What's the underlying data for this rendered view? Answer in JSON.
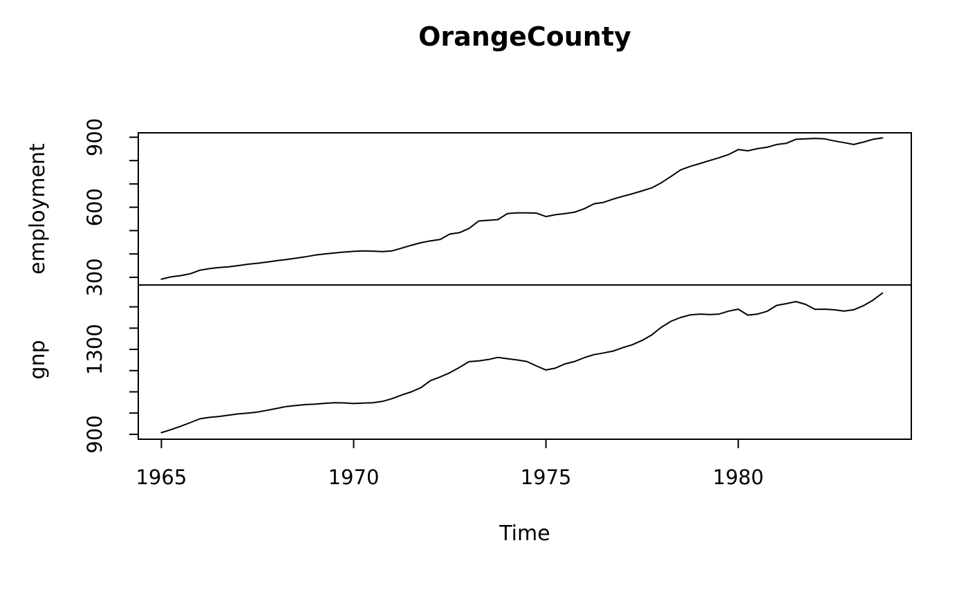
{
  "title": "OrangeCounty",
  "colors": {
    "background": "#ffffff",
    "line": "#000000",
    "text": "#000000",
    "axis": "#000000"
  },
  "chart_data": {
    "type": "line",
    "title": "OrangeCounty",
    "xlabel": "Time",
    "x_start": 1965.0,
    "x_step": 0.25,
    "x_end": 1983.75,
    "xlim": [
      1964.4,
      1984.5
    ],
    "xticks": [
      1965,
      1970,
      1975,
      1980
    ],
    "grid": false,
    "legend": "none",
    "layout": "two stacked panels sharing the x axis",
    "panels": [
      {
        "ylabel": "employment",
        "ylim": [
          267,
          919
        ],
        "yticks": [
          300,
          400,
          500,
          600,
          700,
          800,
          900
        ],
        "ytick_labels": [
          300,
          600,
          900
        ],
        "values": [
          292,
          302,
          307,
          315,
          330,
          337,
          342,
          345,
          350,
          356,
          360,
          365,
          371,
          376,
          382,
          388,
          395,
          400,
          404,
          408,
          411,
          413,
          412,
          410,
          413,
          425,
          437,
          448,
          456,
          462,
          485,
          491,
          509,
          541,
          544,
          547,
          573,
          576,
          576,
          575,
          560,
          568,
          573,
          579,
          594,
          615,
          621,
          635,
          647,
          658,
          670,
          683,
          705,
          732,
          760,
          775,
          787,
          800,
          812,
          826,
          847,
          842,
          851,
          857,
          869,
          874,
          891,
          893,
          895,
          893,
          884,
          877,
          869,
          879,
          891,
          897
        ]
      },
      {
        "ylabel": "gnp",
        "ylim": [
          877,
          1603
        ],
        "yticks": [
          900,
          1000,
          1100,
          1200,
          1300,
          1400,
          1500
        ],
        "ytick_labels": [
          900,
          1300
        ],
        "values": [
          908,
          922,
          938,
          955,
          973,
          980,
          984,
          990,
          996,
          1000,
          1005,
          1013,
          1022,
          1031,
          1036,
          1040,
          1042,
          1046,
          1049,
          1048,
          1045,
          1047,
          1049,
          1055,
          1068,
          1085,
          1100,
          1120,
          1153,
          1170,
          1190,
          1215,
          1242,
          1246,
          1252,
          1262,
          1256,
          1250,
          1243,
          1222,
          1203,
          1212,
          1232,
          1243,
          1261,
          1275,
          1283,
          1292,
          1308,
          1322,
          1342,
          1368,
          1404,
          1432,
          1450,
          1462,
          1466,
          1464,
          1466,
          1480,
          1489,
          1461,
          1466,
          1479,
          1507,
          1515,
          1525,
          1512,
          1488,
          1489,
          1486,
          1480,
          1486,
          1505,
          1531,
          1565
        ]
      }
    ]
  }
}
